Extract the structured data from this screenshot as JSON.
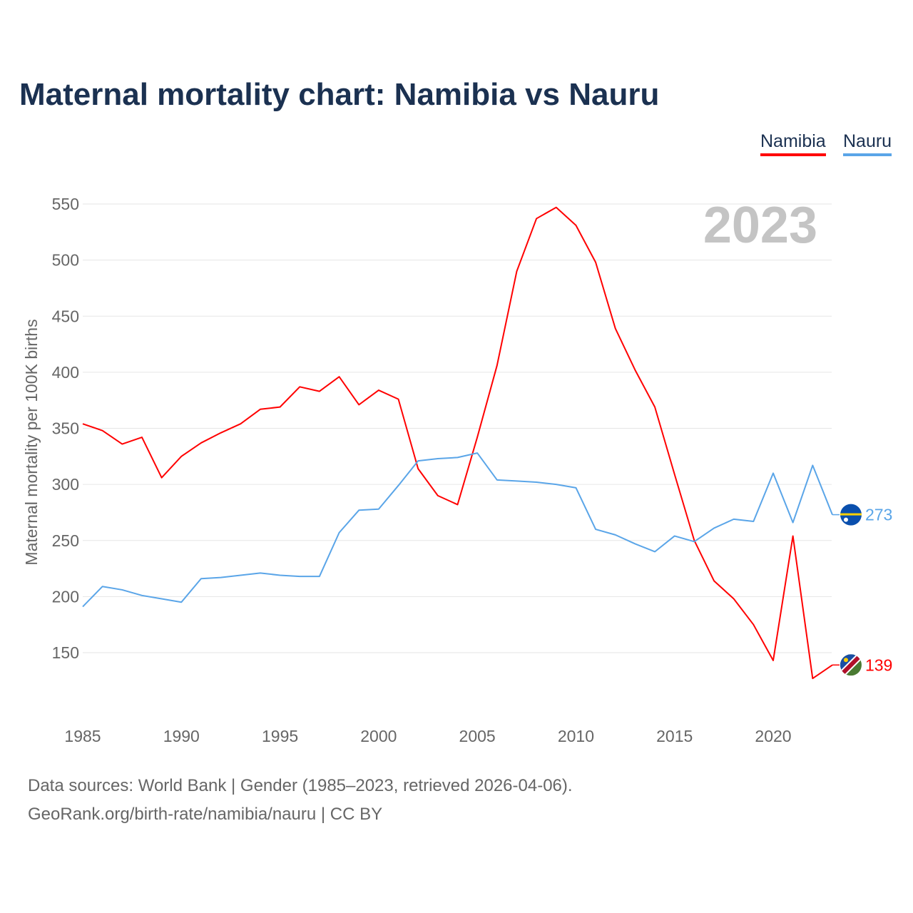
{
  "title": "Maternal mortality chart: Namibia vs Nauru",
  "source_line1": "Data sources: World Bank | Gender (1985–2023, retrieved 2026-04-06).",
  "source_line2": "GeoRank.org/birth-rate/namibia/nauru | CC BY",
  "chart_data": {
    "type": "line",
    "title": "Maternal mortality chart: Namibia vs Nauru",
    "ylabel": "Maternal mortality per 100K births",
    "xlabel": "",
    "year_label": "2023",
    "xlim": [
      1985,
      2023
    ],
    "ylim": [
      100,
      560
    ],
    "yticks": [
      150,
      200,
      250,
      300,
      350,
      400,
      450,
      500,
      550
    ],
    "xticks": [
      1985,
      1990,
      1995,
      2000,
      2005,
      2010,
      2015,
      2020
    ],
    "grid": true,
    "legend_position": "top-right",
    "x": [
      1985,
      1986,
      1987,
      1988,
      1989,
      1990,
      1991,
      1992,
      1993,
      1994,
      1995,
      1996,
      1997,
      1998,
      1999,
      2000,
      2001,
      2002,
      2003,
      2004,
      2005,
      2006,
      2007,
      2008,
      2009,
      2010,
      2011,
      2012,
      2013,
      2014,
      2015,
      2016,
      2017,
      2018,
      2019,
      2020,
      2021,
      2022,
      2023
    ],
    "series": [
      {
        "name": "Namibia",
        "color": "#ff0000",
        "end_label": "139",
        "values": [
          354,
          348,
          336,
          342,
          306,
          325,
          337,
          346,
          354,
          367,
          369,
          387,
          383,
          396,
          371,
          384,
          376,
          314,
          290,
          282,
          342,
          406,
          490,
          537,
          547,
          531,
          498,
          439,
          402,
          369,
          309,
          250,
          214,
          198,
          175,
          143,
          254,
          127,
          139
        ]
      },
      {
        "name": "Nauru",
        "color": "#5aa5e8",
        "end_label": "273",
        "values": [
          191,
          209,
          206,
          201,
          198,
          195,
          216,
          217,
          219,
          221,
          219,
          218,
          218,
          257,
          277,
          278,
          299,
          321,
          323,
          324,
          328,
          304,
          303,
          302,
          300,
          297,
          260,
          255,
          247,
          240,
          254,
          249,
          261,
          269,
          267,
          310,
          266,
          317,
          273
        ]
      }
    ]
  }
}
